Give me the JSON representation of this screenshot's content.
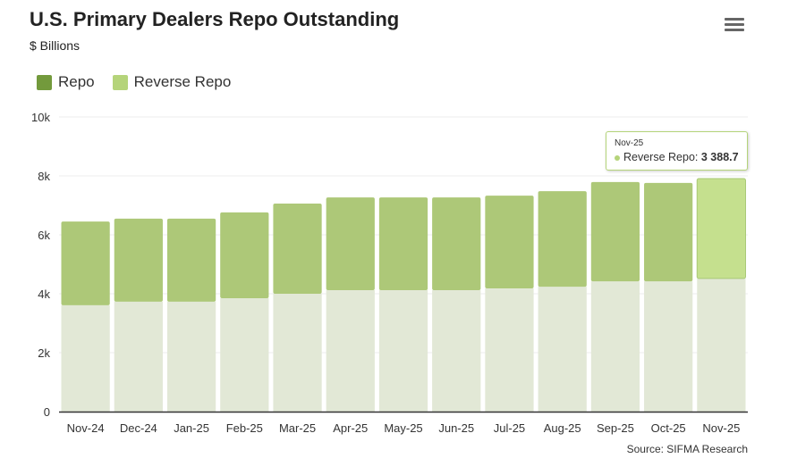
{
  "header": {
    "title": "U.S. Primary Dealers Repo Outstanding",
    "subtitle": "$ Billions",
    "menu_icon": "hamburger-icon"
  },
  "source": "Source: SIFMA Research",
  "colors": {
    "repo": "#739a3c",
    "reverse_repo": "#b5d47a",
    "repo_inactive": "#e2e8d6",
    "reverse_bar": "#adc878",
    "reverse_hover": "#c5e08e"
  },
  "tooltip": {
    "category": "Nov-25",
    "series": "Reverse Repo",
    "value": "3 388.7"
  },
  "chart_data": {
    "type": "bar",
    "stacked": true,
    "categories": [
      "Nov-24",
      "Dec-24",
      "Jan-25",
      "Feb-25",
      "Mar-25",
      "Apr-25",
      "May-25",
      "Jun-25",
      "Jul-25",
      "Aug-25",
      "Sep-25",
      "Oct-25",
      "Nov-25"
    ],
    "series": [
      {
        "name": "Repo",
        "values": [
          3610,
          3730,
          3730,
          3850,
          4000,
          4120,
          4120,
          4120,
          4180,
          4240,
          4420,
          4420,
          4520
        ]
      },
      {
        "name": "Reverse Repo",
        "values": [
          2840,
          2820,
          2820,
          2910,
          3060,
          3150,
          3150,
          3150,
          3150,
          3240,
          3370,
          3340,
          3388.7
        ]
      }
    ],
    "ylim": [
      0,
      10000
    ],
    "yticks": [
      "0",
      "2k",
      "4k",
      "6k",
      "8k",
      "10k"
    ],
    "grid": true,
    "legend": "top-left",
    "highlighted": {
      "series": "Reverse Repo",
      "category": "Nov-25"
    }
  }
}
